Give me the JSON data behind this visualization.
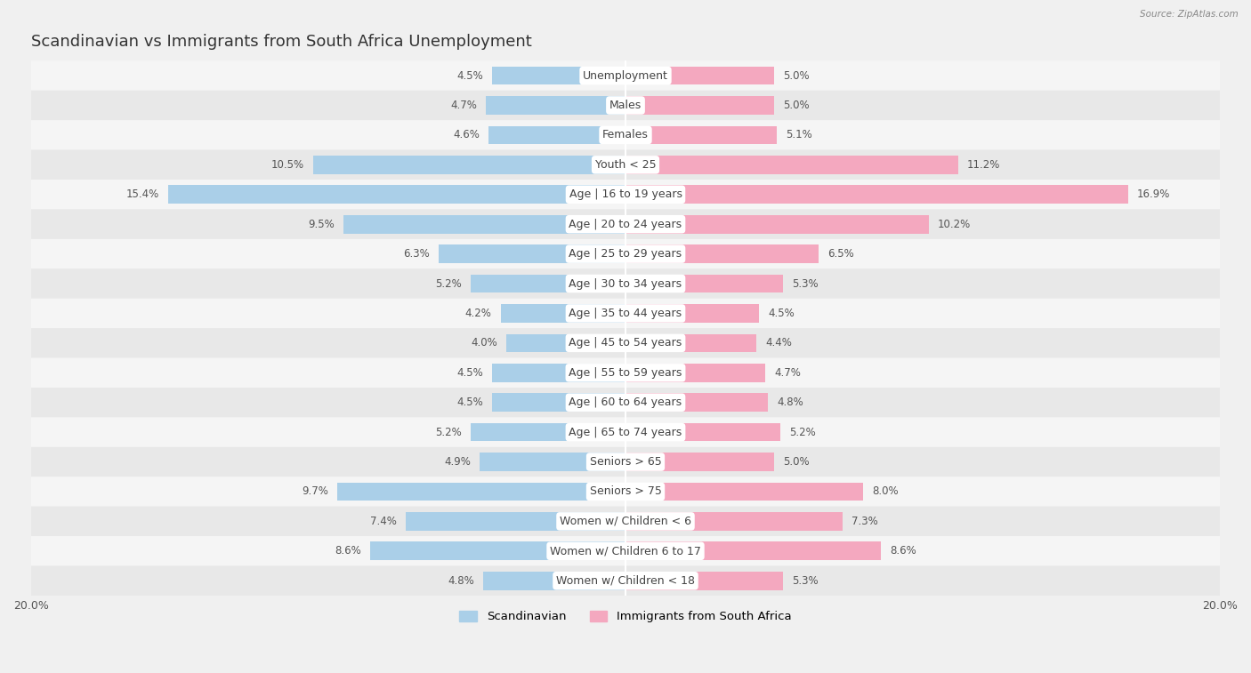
{
  "title": "Scandinavian vs Immigrants from South Africa Unemployment",
  "source": "Source: ZipAtlas.com",
  "categories": [
    "Unemployment",
    "Males",
    "Females",
    "Youth < 25",
    "Age | 16 to 19 years",
    "Age | 20 to 24 years",
    "Age | 25 to 29 years",
    "Age | 30 to 34 years",
    "Age | 35 to 44 years",
    "Age | 45 to 54 years",
    "Age | 55 to 59 years",
    "Age | 60 to 64 years",
    "Age | 65 to 74 years",
    "Seniors > 65",
    "Seniors > 75",
    "Women w/ Children < 6",
    "Women w/ Children 6 to 17",
    "Women w/ Children < 18"
  ],
  "scandinavian": [
    4.5,
    4.7,
    4.6,
    10.5,
    15.4,
    9.5,
    6.3,
    5.2,
    4.2,
    4.0,
    4.5,
    4.5,
    5.2,
    4.9,
    9.7,
    7.4,
    8.6,
    4.8
  ],
  "immigrants": [
    5.0,
    5.0,
    5.1,
    11.2,
    16.9,
    10.2,
    6.5,
    5.3,
    4.5,
    4.4,
    4.7,
    4.8,
    5.2,
    5.0,
    8.0,
    7.3,
    8.6,
    5.3
  ],
  "blue_color": "#aacfe8",
  "pink_color": "#f4a8bf",
  "bg_color": "#f0f0f0",
  "row_bg_even": "#f5f5f5",
  "row_bg_odd": "#e8e8e8",
  "axis_max": 20.0,
  "bar_height": 0.62,
  "title_fontsize": 13,
  "label_fontsize": 9,
  "value_fontsize": 8.5
}
